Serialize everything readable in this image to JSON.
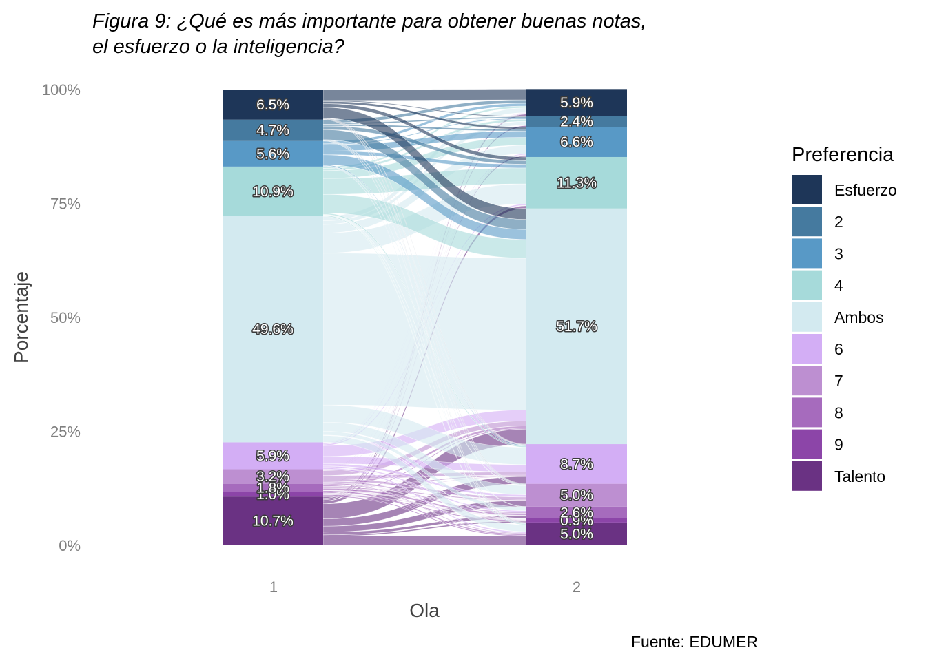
{
  "chart_data": {
    "type": "alluvial",
    "title_line1": "Figura 9: ¿Qué es más importante para obtener buenas notas,",
    "title_line2": "el esfuerzo o la inteligencia?",
    "xlabel": "Ola",
    "ylabel": "Porcentaje",
    "caption": "Fuente: EDUMER",
    "legend_title": "Preferencia",
    "ylim": [
      0,
      100
    ],
    "y_ticks": [
      {
        "value": 0,
        "label": "0%"
      },
      {
        "value": 25,
        "label": "25%"
      },
      {
        "value": 50,
        "label": "50%"
      },
      {
        "value": 75,
        "label": "75%"
      },
      {
        "value": 100,
        "label": "100%"
      }
    ],
    "categories": [
      {
        "name": "Talento",
        "color": "#6a3283"
      },
      {
        "name": "9",
        "color": "#8c45a8"
      },
      {
        "name": "8",
        "color": "#a66bbd"
      },
      {
        "name": "7",
        "color": "#bd8fd1"
      },
      {
        "name": "6",
        "color": "#d3aef5"
      },
      {
        "name": "Ambos",
        "color": "#d3eaf0"
      },
      {
        "name": "4",
        "color": "#a6dada"
      },
      {
        "name": "3",
        "color": "#5899c6"
      },
      {
        "name": "2",
        "color": "#457a9f"
      },
      {
        "name": "Esfuerzo",
        "color": "#1e3658"
      }
    ],
    "waves": [
      {
        "label": "1",
        "values": [
          10.7,
          1.0,
          1.8,
          3.2,
          5.9,
          49.6,
          10.9,
          5.6,
          4.7,
          6.5
        ],
        "labels": [
          "10.7%",
          "1.0%",
          "1.8%",
          "3.2%",
          "5.9%",
          "49.6%",
          "10.9%",
          "5.6%",
          "4.7%",
          "6.5%"
        ]
      },
      {
        "label": "2",
        "values": [
          5.0,
          0.9,
          2.6,
          5.0,
          8.7,
          51.7,
          11.3,
          6.6,
          2.4,
          5.9
        ],
        "labels": [
          "5.0%",
          "0.9%",
          "2.6%",
          "5.0%",
          "8.7%",
          "51.7%",
          "11.3%",
          "6.6%",
          "2.4%",
          "5.9%"
        ]
      }
    ],
    "flows": [
      [
        2.0,
        0.3,
        0.6,
        1.3,
        1.6,
        3.3,
        0.6,
        0.3,
        0.3,
        0.4
      ],
      [
        0.2,
        0.2,
        0.1,
        0.1,
        0.1,
        0.2,
        0.0,
        0.0,
        0.0,
        0.1
      ],
      [
        0.3,
        0.1,
        0.4,
        0.2,
        0.2,
        0.5,
        0.0,
        0.1,
        0.0,
        0.0
      ],
      [
        0.2,
        0.1,
        0.3,
        0.5,
        0.7,
        1.1,
        0.1,
        0.1,
        0.0,
        0.1
      ],
      [
        0.3,
        0.1,
        0.3,
        0.5,
        1.6,
        2.4,
        0.3,
        0.2,
        0.1,
        0.1
      ],
      [
        1.5,
        0.1,
        0.8,
        2.0,
        3.8,
        33.3,
        4.4,
        1.9,
        0.8,
        1.0
      ],
      [
        0.2,
        0.0,
        0.1,
        0.1,
        0.3,
        4.1,
        3.5,
        1.7,
        0.5,
        0.4
      ],
      [
        0.1,
        0.0,
        0.0,
        0.1,
        0.2,
        2.2,
        0.8,
        1.4,
        0.2,
        0.6
      ],
      [
        0.1,
        0.0,
        0.0,
        0.1,
        0.1,
        2.2,
        0.8,
        0.4,
        0.3,
        0.7
      ],
      [
        0.1,
        0.0,
        0.0,
        0.1,
        0.1,
        2.4,
        0.8,
        0.5,
        0.2,
        2.3
      ]
    ]
  }
}
